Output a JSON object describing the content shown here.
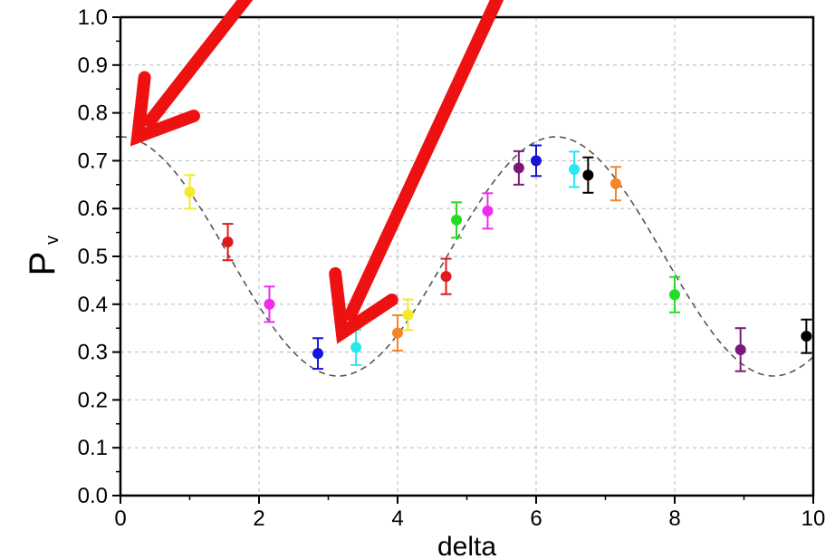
{
  "chart_data": {
    "type": "scatter",
    "title": "",
    "xlabel": "delta",
    "ylabel": {
      "main": "P",
      "subscript": "v"
    },
    "xlim": [
      0,
      10
    ],
    "ylim": [
      0.0,
      1.0
    ],
    "grid": true,
    "x_ticks": [
      "0",
      "2",
      "4",
      "6",
      "8",
      "10"
    ],
    "y_ticks": [
      "0.0",
      "0.1",
      "0.2",
      "0.3",
      "0.4",
      "0.5",
      "0.6",
      "0.7",
      "0.8",
      "0.9",
      "1.0"
    ],
    "model_curve": {
      "style": "dashed",
      "color": "#555555",
      "expression": "0.5 + 0.25*cos(x)"
    },
    "points": [
      {
        "x": 1.0,
        "y": 0.635,
        "err": 0.035,
        "color": "#f2ea2a"
      },
      {
        "x": 1.55,
        "y": 0.53,
        "err": 0.038,
        "color": "#e01b1b"
      },
      {
        "x": 2.15,
        "y": 0.4,
        "err": 0.037,
        "color": "#ef2cf0"
      },
      {
        "x": 2.85,
        "y": 0.297,
        "err": 0.032,
        "color": "#1414d8"
      },
      {
        "x": 3.4,
        "y": 0.31,
        "err": 0.037,
        "color": "#28e8ee"
      },
      {
        "x": 4.0,
        "y": 0.34,
        "err": 0.037,
        "color": "#f58526"
      },
      {
        "x": 4.15,
        "y": 0.378,
        "err": 0.032,
        "color": "#f2ea2a"
      },
      {
        "x": 4.7,
        "y": 0.458,
        "err": 0.037,
        "color": "#e01b1b"
      },
      {
        "x": 4.85,
        "y": 0.576,
        "err": 0.037,
        "color": "#22dd22"
      },
      {
        "x": 5.3,
        "y": 0.595,
        "err": 0.037,
        "color": "#ef2cf0"
      },
      {
        "x": 5.75,
        "y": 0.685,
        "err": 0.035,
        "color": "#7a197a"
      },
      {
        "x": 6.0,
        "y": 0.7,
        "err": 0.032,
        "color": "#1414d8"
      },
      {
        "x": 6.55,
        "y": 0.682,
        "err": 0.037,
        "color": "#28e8ee"
      },
      {
        "x": 6.75,
        "y": 0.67,
        "err": 0.037,
        "color": "#000000"
      },
      {
        "x": 7.15,
        "y": 0.652,
        "err": 0.035,
        "color": "#f58526"
      },
      {
        "x": 8.0,
        "y": 0.42,
        "err": 0.037,
        "color": "#22dd22"
      },
      {
        "x": 8.95,
        "y": 0.305,
        "err": 0.045,
        "color": "#7a197a"
      },
      {
        "x": 9.9,
        "y": 0.333,
        "err": 0.035,
        "color": "#000000"
      }
    ],
    "annotations": [
      {
        "type": "arrow",
        "color": "#ee1111",
        "from": [
          2.25,
          1.12
        ],
        "to": [
          0.25,
          0.75
        ]
      },
      {
        "type": "arrow",
        "color": "#ee1111",
        "from": [
          5.7,
          1.12
        ],
        "to": [
          3.2,
          0.34
        ]
      }
    ]
  }
}
